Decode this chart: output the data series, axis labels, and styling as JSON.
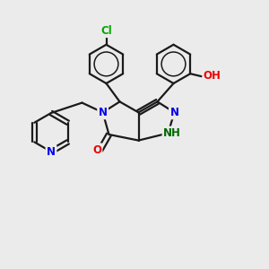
{
  "bg_color": "#ebebeb",
  "bond_color": "#1a1a1a",
  "bond_width": 1.6,
  "atom_colors": {
    "N": "#0000ee",
    "O": "#ee0000",
    "Cl": "#00aa00",
    "NH": "#006600",
    "C": "#1a1a1a"
  },
  "font_size": 8.5,
  "fig_size": [
    3.0,
    3.0
  ],
  "dpi": 100
}
